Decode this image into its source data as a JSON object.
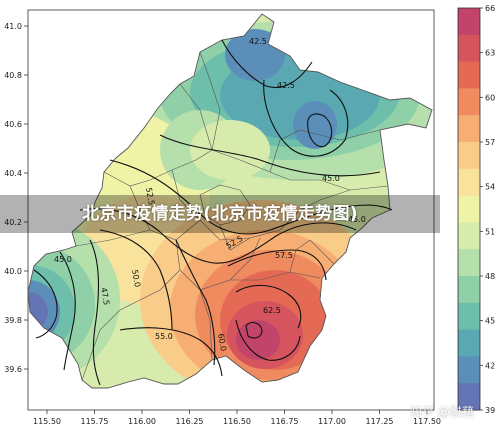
{
  "title": "北京市疫情走势(北京市疫情走势图)",
  "watermark": "知乎 @慰藉",
  "axes": {
    "x_ticks": [
      "115.50",
      "115.75",
      "116.00",
      "116.25",
      "116.50",
      "116.75",
      "117.00",
      "117.25",
      "117.50"
    ],
    "y_ticks": [
      "41.0",
      "40.8",
      "40.6",
      "40.4",
      "40.2",
      "40.0",
      "39.8",
      "39.6"
    ]
  },
  "colorbar": {
    "ticks": [
      "66",
      "63",
      "60",
      "57",
      "54",
      "51",
      "48",
      "45",
      "42",
      "39"
    ],
    "colors": [
      "#c2446b",
      "#d6545d",
      "#e56a55",
      "#ef8b5f",
      "#f6ae72",
      "#f9cc89",
      "#f9e39c",
      "#eef3a6",
      "#d7ecac",
      "#b5e0ab",
      "#8fd0a9",
      "#6dbeab",
      "#5aa8b1",
      "#5b8fba",
      "#6574b4"
    ]
  },
  "contour_labels": [
    "42.5",
    "42.5",
    "45.0",
    "45.0",
    "52.5",
    "52.5",
    "57.5",
    "60.0",
    "62.5",
    "55.0",
    "50.0",
    "47.5",
    "45.0"
  ]
}
